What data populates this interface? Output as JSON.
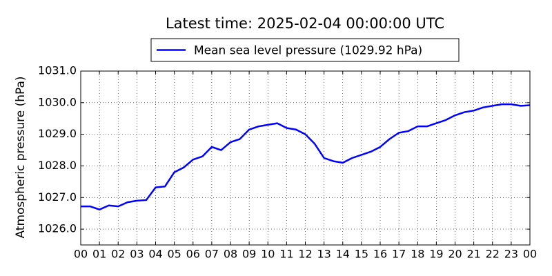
{
  "chart_data": {
    "type": "line",
    "title": "Latest time: 2025-02-04 00:00:00 UTC",
    "ylabel": "Atmospheric pressure (hPa)",
    "legend": "upper center",
    "grid": true,
    "x": [
      0,
      0.5,
      1,
      1.5,
      2,
      2.5,
      3,
      3.5,
      4,
      4.5,
      5,
      5.5,
      6,
      6.5,
      7,
      7.5,
      8,
      8.5,
      9,
      9.5,
      10,
      10.5,
      11,
      11.5,
      12,
      12.5,
      13,
      13.5,
      14,
      14.5,
      15,
      15.5,
      16,
      16.5,
      17,
      17.5,
      18,
      18.5,
      19,
      19.5,
      20,
      20.5,
      21,
      21.5,
      22,
      22.5,
      23,
      23.5,
      24
    ],
    "series": [
      {
        "name": "Mean sea level pressure (1029.92 hPa)",
        "color": "#0000ff",
        "values": [
          1026.72,
          1026.72,
          1026.62,
          1026.75,
          1026.72,
          1026.85,
          1026.9,
          1026.92,
          1027.32,
          1027.35,
          1027.8,
          1027.95,
          1028.2,
          1028.3,
          1028.6,
          1028.5,
          1028.75,
          1028.85,
          1029.15,
          1029.25,
          1029.3,
          1029.35,
          1029.2,
          1029.15,
          1029.0,
          1028.7,
          1028.25,
          1028.15,
          1028.1,
          1028.25,
          1028.35,
          1028.45,
          1028.6,
          1028.85,
          1029.05,
          1029.1,
          1029.25,
          1029.25,
          1029.35,
          1029.45,
          1029.6,
          1029.7,
          1029.75,
          1029.85,
          1029.9,
          1029.95,
          1029.95,
          1029.9,
          1029.92
        ]
      }
    ],
    "xlim": [
      0,
      24
    ],
    "xticks": [
      {
        "value": 0,
        "label": "00"
      },
      {
        "value": 1,
        "label": "01"
      },
      {
        "value": 2,
        "label": "02"
      },
      {
        "value": 3,
        "label": "03"
      },
      {
        "value": 4,
        "label": "04"
      },
      {
        "value": 5,
        "label": "05"
      },
      {
        "value": 6,
        "label": "06"
      },
      {
        "value": 7,
        "label": "07"
      },
      {
        "value": 8,
        "label": "08"
      },
      {
        "value": 9,
        "label": "09"
      },
      {
        "value": 10,
        "label": "10"
      },
      {
        "value": 11,
        "label": "11"
      },
      {
        "value": 12,
        "label": "12"
      },
      {
        "value": 13,
        "label": "13"
      },
      {
        "value": 14,
        "label": "14"
      },
      {
        "value": 15,
        "label": "15"
      },
      {
        "value": 16,
        "label": "16"
      },
      {
        "value": 17,
        "label": "17"
      },
      {
        "value": 18,
        "label": "18"
      },
      {
        "value": 19,
        "label": "19"
      },
      {
        "value": 20,
        "label": "20"
      },
      {
        "value": 21,
        "label": "21"
      },
      {
        "value": 22,
        "label": "22"
      },
      {
        "value": 23,
        "label": "23"
      },
      {
        "value": 24,
        "label": "00"
      }
    ],
    "ylim": [
      1025.5,
      1031.0
    ],
    "yticks": [
      {
        "value": 1026,
        "label": "1026.0"
      },
      {
        "value": 1027,
        "label": "1027.0"
      },
      {
        "value": 1028,
        "label": "1028.0"
      },
      {
        "value": 1029,
        "label": "1029.0"
      },
      {
        "value": 1030,
        "label": "1030.0"
      },
      {
        "value": 1031,
        "label": "1031.0"
      }
    ]
  }
}
